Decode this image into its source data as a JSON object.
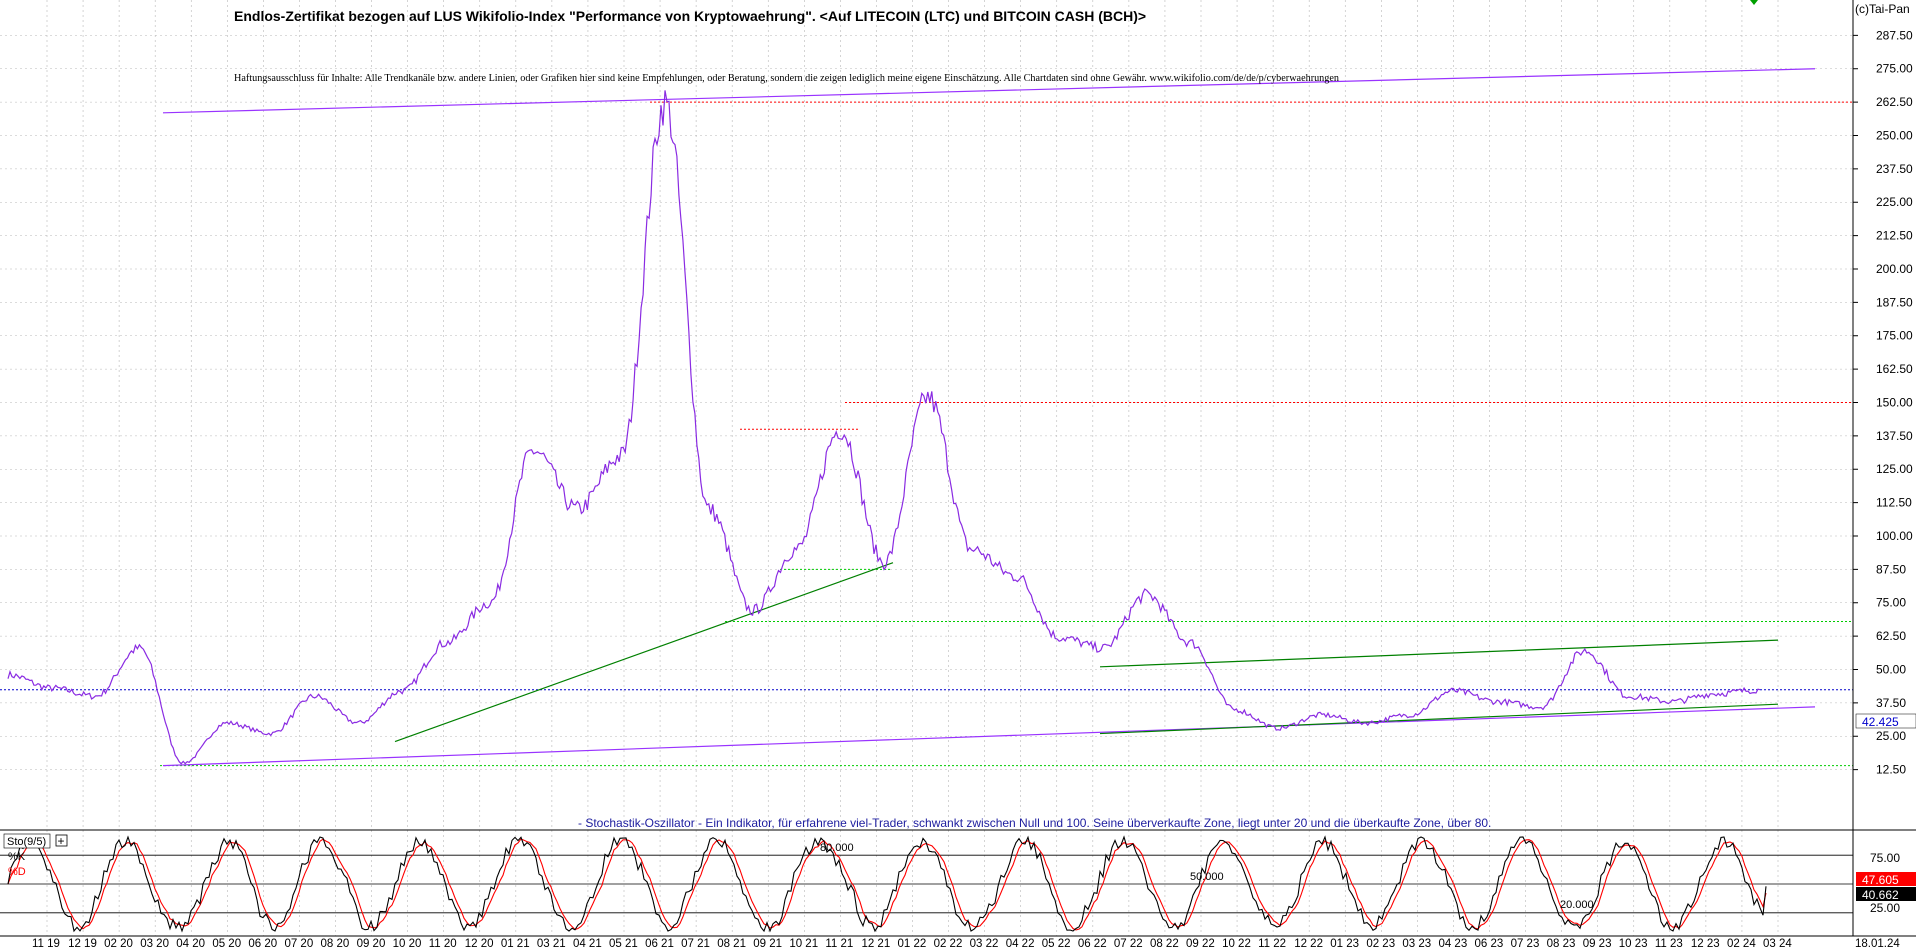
{
  "header": {
    "title": "Endlos-Zertifikat bezogen auf LUS Wikifolio-Index \"Performance von Kryptowaehrung\". <Auf LITECOIN (LTC) und BITCOIN CASH (BCH)>",
    "disclaimer": "Haftungsausschluss für Inhalte: Alle Trendkanäle bzw. andere Linien, oder Grafiken hier sind keine Empfehlungen, oder Beratung, sondern die zeigen lediglich meine eigene Einschätzung. Alle Chartdaten sind ohne Gewähr. www.wikifolio.com/de/de/p/cyberwaehrungen",
    "copyright": "(c)Tai-Pan"
  },
  "colors": {
    "price": "#8a2be2",
    "trend_purple": "#9933ff",
    "trend_green": "#008000",
    "resistance_red": "#ff0000",
    "support_green": "#00cc00",
    "current_blue": "#0000cc",
    "k_line": "#000000",
    "d_line": "#ff0000",
    "grid": "#b8b8b8"
  },
  "chart_data": [
    {
      "type": "line",
      "series_name": "",
      "y_axis_labels": [
        "287.50",
        "275.00",
        "262.50",
        "250.00",
        "237.50",
        "225.00",
        "212.50",
        "200.00",
        "187.50",
        "175.00",
        "162.50",
        "150.00",
        "137.50",
        "125.00",
        "112.50",
        "100.00",
        "87.50",
        "75.00",
        "62.50",
        "50.00",
        "37.50",
        "25.00",
        "12.50"
      ],
      "ylim": [
        0,
        297
      ],
      "x_tick_labels": [
        "11 19",
        "12 19",
        "02 20",
        "03 20",
        "04 20",
        "05 20",
        "06 20",
        "07 20",
        "08 20",
        "09 20",
        "10 20",
        "11 20",
        "12 20",
        "01 21",
        "03 21",
        "04 21",
        "05 21",
        "06 21",
        "07 21",
        "08 21",
        "09 21",
        "10 21",
        "11 21",
        "12 21",
        "01 22",
        "02 22",
        "03 22",
        "04 22",
        "05 22",
        "06 22",
        "07 22",
        "08 22",
        "09 22",
        "10 22",
        "11 22",
        "12 22",
        "01 23",
        "02 23",
        "03 23",
        "04 23",
        "06 23",
        "07 23",
        "08 23",
        "09 23",
        "10 23",
        "11 23",
        "12 23",
        "02 24",
        "03 24",
        "18.01.24"
      ],
      "current_value": "42.425",
      "key_points": [
        {
          "date": "11 19",
          "value": 48
        },
        {
          "date": "12 19",
          "value": 43
        },
        {
          "date": "01 20",
          "value": 40
        },
        {
          "date": "02 20",
          "value": 58
        },
        {
          "date": "03 20",
          "value": 15
        },
        {
          "date": "05 20",
          "value": 30
        },
        {
          "date": "07 20",
          "value": 26
        },
        {
          "date": "08 20",
          "value": 40
        },
        {
          "date": "10 20",
          "value": 30
        },
        {
          "date": "11 20",
          "value": 42
        },
        {
          "date": "12 20",
          "value": 60
        },
        {
          "date": "01 21",
          "value": 75
        },
        {
          "date": "02 21",
          "value": 132
        },
        {
          "date": "03 21",
          "value": 110
        },
        {
          "date": "04 21",
          "value": 130
        },
        {
          "date": "05 21",
          "value": 262
        },
        {
          "date": "06 21",
          "value": 110
        },
        {
          "date": "07 21",
          "value": 72
        },
        {
          "date": "08 21",
          "value": 95
        },
        {
          "date": "09 21",
          "value": 140
        },
        {
          "date": "10 21",
          "value": 90
        },
        {
          "date": "11 21",
          "value": 152
        },
        {
          "date": "12 21",
          "value": 95
        },
        {
          "date": "01 22",
          "value": 85
        },
        {
          "date": "02 22",
          "value": 62
        },
        {
          "date": "03 22",
          "value": 58
        },
        {
          "date": "04 22",
          "value": 78
        },
        {
          "date": "05 22",
          "value": 60
        },
        {
          "date": "06 22",
          "value": 35
        },
        {
          "date": "07 22",
          "value": 28
        },
        {
          "date": "08 22",
          "value": 33
        },
        {
          "date": "10 22",
          "value": 30
        },
        {
          "date": "12 22",
          "value": 33
        },
        {
          "date": "02 23",
          "value": 42
        },
        {
          "date": "04 23",
          "value": 38
        },
        {
          "date": "06 23",
          "value": 36
        },
        {
          "date": "07 23",
          "value": 57
        },
        {
          "date": "08 23",
          "value": 40
        },
        {
          "date": "10 23",
          "value": 38
        },
        {
          "date": "12 23",
          "value": 41
        },
        {
          "date": "01 24",
          "value": 42.425
        }
      ],
      "reference_levels": [
        {
          "value": 262.5,
          "color": "red"
        },
        {
          "value": 150.0,
          "color": "red"
        },
        {
          "value": 140.0,
          "color": "red"
        },
        {
          "value": 87.5,
          "color": "green"
        },
        {
          "value": 68.0,
          "color": "green"
        },
        {
          "value": 42.425,
          "color": "blue"
        },
        {
          "value": 14.0,
          "color": "green"
        }
      ]
    },
    {
      "type": "line",
      "title": "Sto(9/5)",
      "series": [
        {
          "name": "%K"
        },
        {
          "name": "%D"
        }
      ],
      "levels": [
        "80.000",
        "50.000",
        "20.000"
      ],
      "y_axis_labels": [
        "75.00",
        "25.00"
      ],
      "ylim": [
        0,
        100
      ],
      "last_k": "47.605",
      "last_d": "40.662"
    }
  ],
  "oscillator_note": "- Stochastik-Oszillator - Ein Indikator, für erfahrene viel-Trader, schwankt zwischen Null und 100. Seine überverkaufte Zone, liegt unter 20 und die überkaufte Zone, über 80."
}
